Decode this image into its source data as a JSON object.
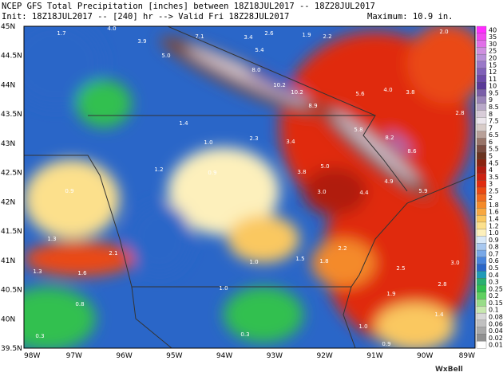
{
  "header": {
    "line1": "NCEP GFS Total Precipitation [inches] between 18Z18JUL2017 -- 18Z28JUL2017",
    "line2": "Init: 18Z18JUL2017 -- [240] hr --> Valid Fri 18Z28JUL2017",
    "maximum": "Maximum: 10.9 in."
  },
  "lat_labels": [
    "45N",
    "44.5N",
    "44N",
    "43.5N",
    "43N",
    "42.5N",
    "42N",
    "41.5N",
    "41N",
    "40.5N",
    "40N",
    "39.5N"
  ],
  "lon_labels": [
    "98W",
    "97W",
    "96W",
    "95W",
    "94W",
    "93W",
    "92W",
    "91W",
    "90W",
    "89W"
  ],
  "colorbar": [
    {
      "label": "40",
      "color": "#ff2cff"
    },
    {
      "label": "35",
      "color": "#f048f0"
    },
    {
      "label": "30",
      "color": "#e070e8"
    },
    {
      "label": "25",
      "color": "#cf8fe0"
    },
    {
      "label": "20",
      "color": "#b890d8"
    },
    {
      "label": "15",
      "color": "#9a78c8"
    },
    {
      "label": "12",
      "color": "#8060b8"
    },
    {
      "label": "11",
      "color": "#6c4aa8"
    },
    {
      "label": "10",
      "color": "#5a3a98"
    },
    {
      "label": "9.5",
      "color": "#7a5ea8"
    },
    {
      "label": "9",
      "color": "#9a84b8"
    },
    {
      "label": "8.5",
      "color": "#b8a8c8"
    },
    {
      "label": "8",
      "color": "#d8ccd8"
    },
    {
      "label": "7.5",
      "color": "#ece6ec"
    },
    {
      "label": "7",
      "color": "#d8ccc8"
    },
    {
      "label": "6.5",
      "color": "#b8a098"
    },
    {
      "label": "6",
      "color": "#987468"
    },
    {
      "label": "5.5",
      "color": "#7a4c40"
    },
    {
      "label": "5",
      "color": "#6a3420"
    },
    {
      "label": "4.5",
      "color": "#8a2410"
    },
    {
      "label": "4",
      "color": "#b01c10"
    },
    {
      "label": "3.5",
      "color": "#cc2010"
    },
    {
      "label": "3",
      "color": "#e02c10"
    },
    {
      "label": "2.5",
      "color": "#ea4a14"
    },
    {
      "label": "2",
      "color": "#f06a20"
    },
    {
      "label": "1.8",
      "color": "#f48a2a"
    },
    {
      "label": "1.6",
      "color": "#f8a840"
    },
    {
      "label": "1.4",
      "color": "#fac860"
    },
    {
      "label": "1.2",
      "color": "#fce08c"
    },
    {
      "label": "1.0",
      "color": "#fdf0bc"
    },
    {
      "label": "0.9",
      "color": "#d8e8f8"
    },
    {
      "label": "0.8",
      "color": "#a8c8f0"
    },
    {
      "label": "0.7",
      "color": "#78a8e8"
    },
    {
      "label": "0.6",
      "color": "#4884dc"
    },
    {
      "label": "0.5",
      "color": "#2a66c8"
    },
    {
      "label": "0.4",
      "color": "#1f9ab8"
    },
    {
      "label": "0.3",
      "color": "#28b070"
    },
    {
      "label": "0.25",
      "color": "#30c050"
    },
    {
      "label": "0.2",
      "color": "#60d060"
    },
    {
      "label": "0.15",
      "color": "#98dc88"
    },
    {
      "label": "0.1",
      "color": "#c8e8b0"
    },
    {
      "label": "0.08",
      "color": "#d8d8d8"
    },
    {
      "label": "0.06",
      "color": "#c0c0c0"
    },
    {
      "label": "0.04",
      "color": "#a8a8a8"
    },
    {
      "label": "0.02",
      "color": "#909090"
    },
    {
      "label": "0.01",
      "color": "#ffffff"
    }
  ],
  "map_values": [
    "1.7",
    "4.0",
    "3.9",
    "5.0",
    "7.1",
    "3.4",
    "2.6",
    "1.9",
    "2.2",
    "2.0",
    "5.4",
    "8.0",
    "10.2",
    "10.2",
    "8.9",
    "5.6",
    "4.0",
    "3.8",
    "2.8",
    "5.8",
    "8.2",
    "8.6",
    "5.0",
    "4.9",
    "5.9",
    "3.0",
    "4.4",
    "3.8",
    "3.4",
    "2.3",
    "1.4",
    "1.0",
    "0.9",
    "1.2",
    "0.9",
    "1.3",
    "2.1",
    "1.6",
    "1.3",
    "0.8",
    "0.3",
    "1.0",
    "1.0",
    "1.5",
    "1.8",
    "2.2",
    "2.5",
    "3.0",
    "2.8",
    "1.9",
    "1.0",
    "1.4",
    "0.9",
    "0.3"
  ],
  "logo": "WxBell"
}
